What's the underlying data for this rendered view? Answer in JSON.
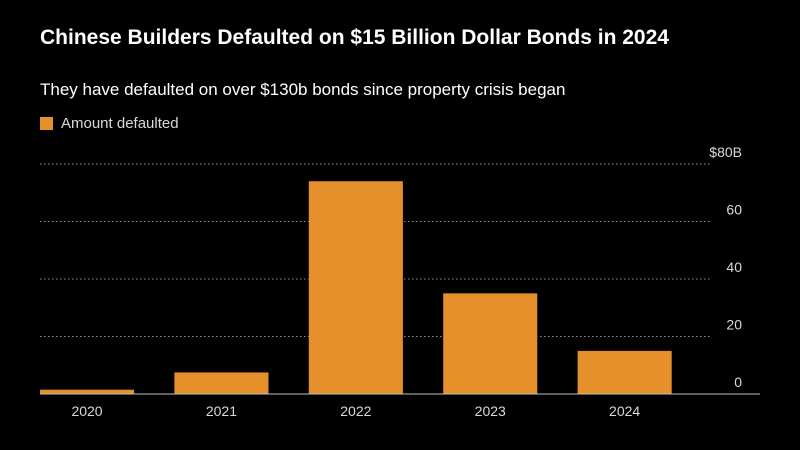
{
  "chart_data": {
    "type": "bar",
    "title": "Chinese Builders Defaulted on $15 Billion Dollar Bonds in 2024",
    "subtitle": "They have defaulted on over $130b bonds since property crisis began",
    "legend": [
      "Amount defaulted"
    ],
    "categories": [
      "2020",
      "2021",
      "2022",
      "2023",
      "2024"
    ],
    "series": [
      {
        "name": "Amount defaulted",
        "values": [
          1.5,
          7.5,
          74,
          35,
          15
        ]
      }
    ],
    "ylim": [
      0,
      80
    ],
    "yticks": [
      0,
      20,
      40,
      60,
      80
    ],
    "ytick_labels": [
      "0",
      "20",
      "40",
      "60",
      "$80B"
    ],
    "y_axis_side": "right",
    "grid": true,
    "xlabel": "",
    "ylabel": ""
  },
  "colors": {
    "bar": "#e5902a",
    "background": "#000000",
    "grid": "#8c8c8c",
    "text": "#ffffff",
    "tick_text": "#d9d9d9"
  }
}
